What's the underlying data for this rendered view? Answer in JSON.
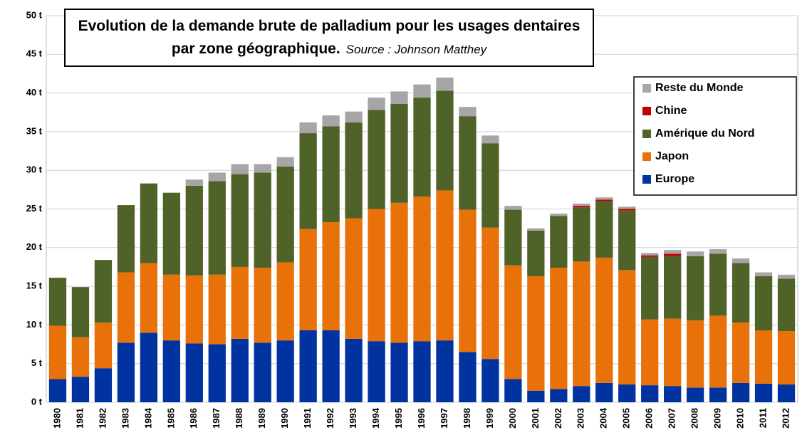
{
  "chart_data": {
    "type": "stacked_bar",
    "title": "Evolution de la demande brute de palladium pour les usages dentaires par zone géographique.",
    "source": "Source : Johnson Matthey",
    "categories": [
      "1980",
      "1981",
      "1982",
      "1983",
      "1984",
      "1985",
      "1986",
      "1987",
      "1988",
      "1989",
      "1990",
      "1991",
      "1992",
      "1993",
      "1994",
      "1995",
      "1996",
      "1997",
      "1998",
      "1999",
      "2000",
      "2001",
      "2002",
      "2003",
      "2004",
      "2005",
      "2006",
      "2007",
      "2008",
      "2009",
      "2010",
      "2011",
      "2012"
    ],
    "series": [
      {
        "name": "Europe",
        "color": "#0033a0",
        "values": [
          3.0,
          3.3,
          4.4,
          7.7,
          9.0,
          8.0,
          7.6,
          7.5,
          8.2,
          7.7,
          8.0,
          9.3,
          9.3,
          8.2,
          7.9,
          7.7,
          7.9,
          8.0,
          6.5,
          5.6,
          3.0,
          1.5,
          1.7,
          2.1,
          2.5,
          2.3,
          2.2,
          2.1,
          1.9,
          1.9,
          2.5,
          2.4,
          2.3
        ]
      },
      {
        "name": "Japon",
        "color": "#e8710a",
        "values": [
          6.9,
          5.1,
          5.9,
          9.1,
          9.0,
          8.5,
          8.8,
          9.0,
          9.3,
          9.7,
          10.1,
          13.1,
          14.0,
          15.6,
          17.1,
          18.1,
          18.7,
          19.4,
          18.4,
          17.0,
          14.7,
          14.8,
          15.7,
          16.1,
          16.2,
          14.8,
          8.5,
          8.7,
          8.7,
          9.3,
          7.8,
          6.9,
          6.9
        ]
      },
      {
        "name": "Amérique du Nord",
        "color": "#4f6228",
        "values": [
          6.2,
          6.5,
          8.1,
          8.7,
          10.3,
          10.6,
          11.6,
          12.1,
          12.0,
          12.3,
          12.4,
          12.4,
          12.4,
          12.4,
          12.8,
          12.8,
          12.8,
          12.9,
          12.1,
          10.9,
          7.2,
          5.9,
          6.7,
          7.0,
          7.3,
          7.7,
          8.1,
          8.1,
          8.3,
          8.0,
          7.7,
          7.0,
          6.8
        ]
      },
      {
        "name": "Chine",
        "color": "#c00000",
        "values": [
          0,
          0,
          0,
          0,
          0,
          0,
          0,
          0,
          0,
          0,
          0,
          0,
          0,
          0,
          0,
          0,
          0,
          0,
          0,
          0,
          0,
          0,
          0,
          0.2,
          0.2,
          0.2,
          0.2,
          0.3,
          0,
          0,
          0,
          0,
          0
        ]
      },
      {
        "name": "Reste du Monde",
        "color": "#a6a6a6",
        "values": [
          0,
          0,
          0,
          0,
          0,
          0,
          0.8,
          1.1,
          1.3,
          1.1,
          1.2,
          1.4,
          1.4,
          1.4,
          1.6,
          1.6,
          1.7,
          1.7,
          1.2,
          1.0,
          0.5,
          0.3,
          0.3,
          0.3,
          0.3,
          0.3,
          0.3,
          0.5,
          0.6,
          0.6,
          0.6,
          0.5,
          0.5
        ]
      }
    ],
    "ylim": [
      0,
      50
    ],
    "yticks": [
      {
        "value": 0,
        "label": "0 t"
      },
      {
        "value": 5,
        "label": "5 t"
      },
      {
        "value": 10,
        "label": "10 t"
      },
      {
        "value": 15,
        "label": "15 t"
      },
      {
        "value": 20,
        "label": "20 t"
      },
      {
        "value": 25,
        "label": "25 t"
      },
      {
        "value": 30,
        "label": "30 t"
      },
      {
        "value": 35,
        "label": "35 t"
      },
      {
        "value": 40,
        "label": "40 t"
      },
      {
        "value": 45,
        "label": "45 t"
      },
      {
        "value": 50,
        "label": "50 t"
      }
    ],
    "grid": true,
    "legend": "upper right"
  }
}
